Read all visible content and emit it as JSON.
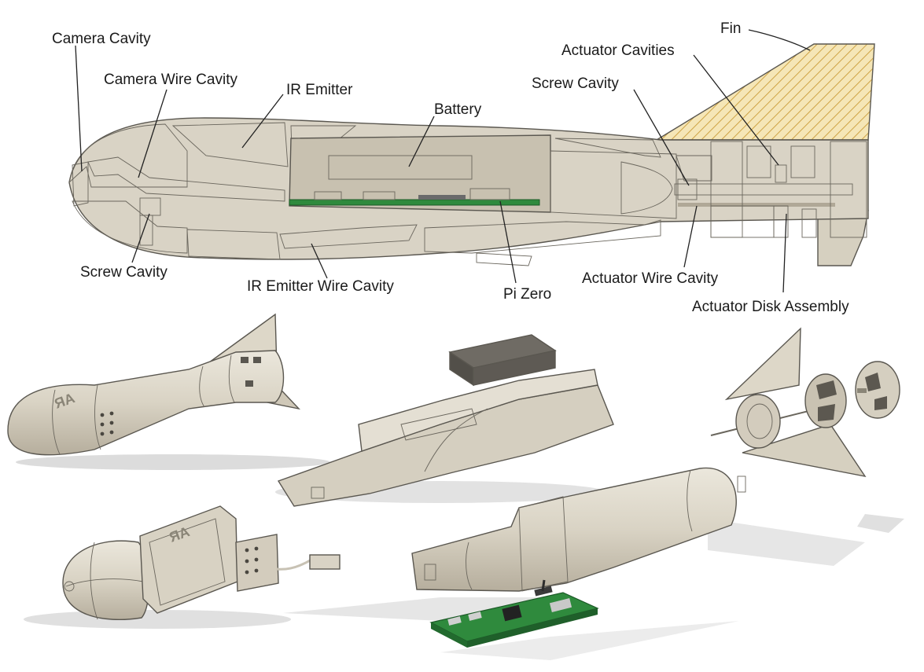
{
  "labels": {
    "camera_cavity": "Camera Cavity",
    "camera_wire_cavity": "Camera Wire Cavity",
    "ir_emitter": "IR Emitter",
    "battery": "Battery",
    "screw_cavity_rear": "Screw Cavity",
    "actuator_cavities": "Actuator Cavities",
    "fin": "Fin",
    "screw_cavity_front": "Screw Cavity",
    "ir_emitter_wire_cavity": "IR Emitter Wire Cavity",
    "pi_zero": "Pi Zero",
    "actuator_wire_cavity": "Actuator Wire Cavity",
    "actuator_disk_assembly": "Actuator Disk Assembly"
  },
  "icons": {
    "logo_mark": "RA-logo"
  },
  "colors": {
    "body": "#d8d2c3",
    "body_dark": "#b9b2a2",
    "hatch_orange": "#e58a5c",
    "hatch_pink": "#d46fd6",
    "hatch_yellow": "#d9b24a",
    "hatch_blue": "#4a8fe0",
    "hatch_red": "#e25a4a",
    "pcb_green": "#2f8a3d"
  }
}
